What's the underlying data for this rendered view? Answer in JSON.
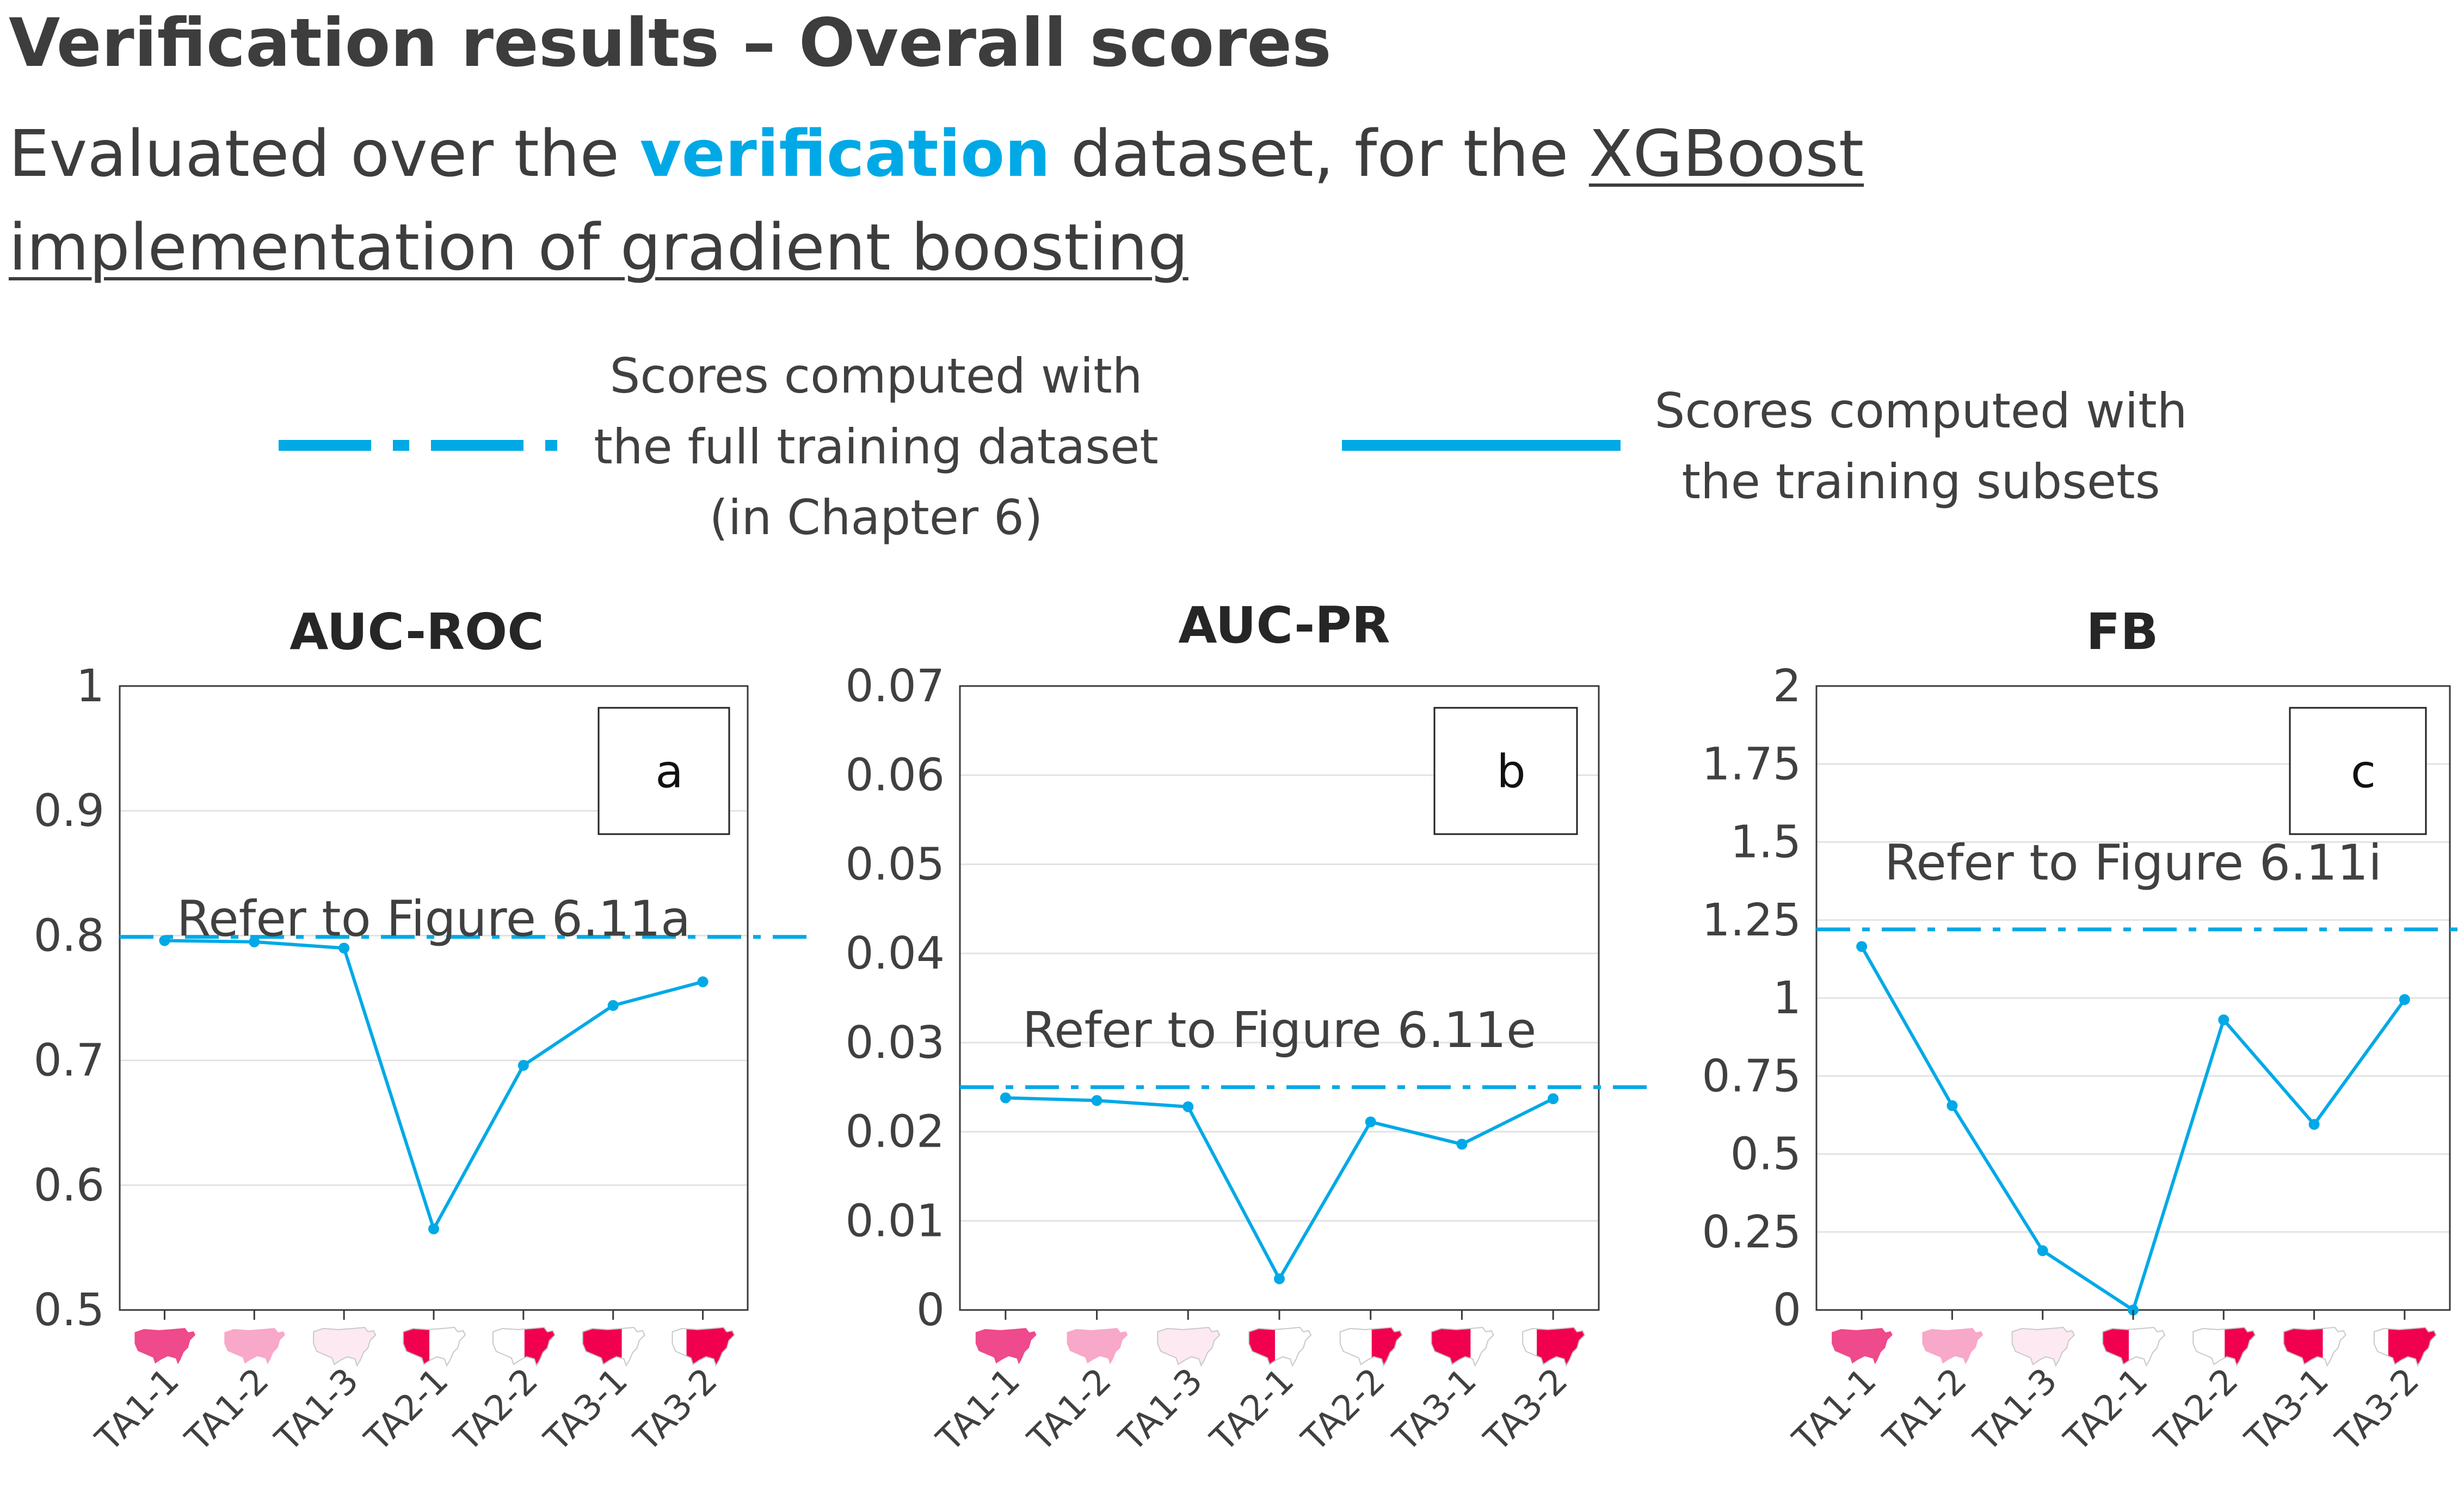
{
  "header": {
    "title": "Verification results – Overall scores",
    "subtitle_prefix": "Evaluated over the ",
    "subtitle_highlight": "verification",
    "subtitle_middle": " dataset, for the ",
    "subtitle_link": "XGBoost implementation of gradient boosting"
  },
  "legend": {
    "full": {
      "lines": [
        "Scores computed with",
        "the full training dataset",
        "(in Chapter 6)"
      ]
    },
    "subsets": {
      "lines": [
        "Scores computed with",
        "the training subsets"
      ]
    }
  },
  "colors": {
    "accent": "#00a9e6",
    "text": "#3d3d3d",
    "grid": "#e3e3e3",
    "map_full": "#ee4a8c",
    "map_light": "#f8a8c8",
    "map_pale": "#fde9f1",
    "map_red": "#f0004f"
  },
  "chart_data": [
    {
      "type": "line",
      "title": "AUC-ROC",
      "panel": "a",
      "categories": [
        "TA1-1",
        "TA1-2",
        "TA1-3",
        "TA2-1",
        "TA2-2",
        "TA3-1",
        "TA3-2"
      ],
      "map_icons": [
        "full",
        "light",
        "pale",
        "west-red",
        "east-red",
        "partial-red",
        "east-red-small"
      ],
      "series": [
        {
          "name": "Scores computed with the training subsets",
          "values": [
            0.796,
            0.795,
            0.79,
            0.565,
            0.696,
            0.744,
            0.763
          ]
        }
      ],
      "reference": {
        "value": 0.799,
        "label": "Refer to Figure 6.11a"
      },
      "ylim": [
        0.5,
        1
      ],
      "yticks": [
        0.5,
        0.6,
        0.7,
        0.8,
        0.9,
        1
      ],
      "ytick_labels": [
        "0.5",
        "0.6",
        "0.7",
        "0.8",
        "0.9",
        "1"
      ],
      "ref_label_above": 0.8
    },
    {
      "type": "line",
      "title": "AUC-PR",
      "panel": "b",
      "categories": [
        "TA1-1",
        "TA1-2",
        "TA1-3",
        "TA2-1",
        "TA2-2",
        "TA3-1",
        "TA3-2"
      ],
      "map_icons": [
        "full",
        "light",
        "pale",
        "west-red",
        "east-red",
        "partial-red",
        "east-red-small"
      ],
      "series": [
        {
          "name": "Scores computed with the training subsets",
          "values": [
            0.0238,
            0.0235,
            0.0228,
            0.0035,
            0.0211,
            0.0186,
            0.0237
          ]
        }
      ],
      "reference": {
        "value": 0.025,
        "label": "Refer to Figure 6.11e"
      },
      "ylim": [
        0,
        0.07
      ],
      "yticks": [
        0,
        0.01,
        0.02,
        0.03,
        0.04,
        0.05,
        0.06,
        0.07
      ],
      "ytick_labels": [
        "0",
        "0.01",
        "0.02",
        "0.03",
        "0.04",
        "0.05",
        "0.06",
        "0.07"
      ],
      "ref_label_above": 0.0295
    },
    {
      "type": "line",
      "title": "FB",
      "panel": "c",
      "categories": [
        "TA1-1",
        "TA1-2",
        "TA1-3",
        "TA2-1",
        "TA2-2",
        "TA3-1",
        "TA3-2"
      ],
      "map_icons": [
        "full",
        "light",
        "pale",
        "west-red",
        "east-red",
        "partial-red",
        "east-red-small"
      ],
      "series": [
        {
          "name": "Scores computed with the training subsets",
          "values": [
            1.165,
            0.655,
            0.19,
            0.0,
            0.93,
            0.595,
            0.995
          ]
        }
      ],
      "reference": {
        "value": 1.22,
        "label": "Refer to Figure 6.11i"
      },
      "ylim": [
        0,
        2
      ],
      "yticks": [
        0,
        0.25,
        0.5,
        0.75,
        1,
        1.25,
        1.5,
        1.75,
        2
      ],
      "ytick_labels": [
        "0",
        "0.25",
        "0.5",
        "0.75",
        "1",
        "1.25",
        "1.5",
        "1.75",
        "2"
      ],
      "ref_label_above": 1.38
    }
  ]
}
